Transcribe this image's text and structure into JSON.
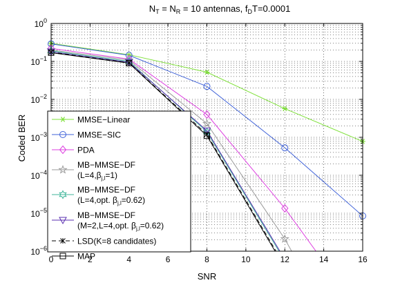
{
  "chart_data": {
    "type": "line",
    "title_parts": {
      "n": "N",
      "t_sub": "T",
      "eq": " = N",
      "r_sub": "R",
      "mid": " = 10 antennas, f",
      "d_sub": "D",
      "tail": "T=0.0001"
    },
    "xlabel": "SNR",
    "ylabel": "Coded BER",
    "xlim": [
      0,
      16
    ],
    "ylim_exponent": [
      -6,
      0
    ],
    "yscale": "log",
    "grid": true,
    "x_ticks": [
      0,
      2,
      4,
      6,
      8,
      10,
      12,
      14,
      16
    ],
    "y_tick_base": "10",
    "y_tick_exponents": [
      "0",
      "−1",
      "−2",
      "−3",
      "−4",
      "−5",
      "−6"
    ],
    "legend_position": "lower-left",
    "series": [
      {
        "legend": [
          [
            "MMSE−Linear"
          ]
        ],
        "color": "#7fe03a",
        "marker": "star6",
        "points": [
          [
            0,
            0.3
          ],
          [
            4,
            0.15
          ],
          [
            8,
            0.052
          ],
          [
            12,
            0.0057
          ],
          [
            16,
            0.00078
          ]
        ]
      },
      {
        "legend": [
          [
            "MMSE−SIC"
          ]
        ],
        "color": "#3f62d8",
        "marker": "circle",
        "points": [
          [
            0,
            0.29
          ],
          [
            4,
            0.145
          ],
          [
            8,
            0.022
          ],
          [
            12,
            0.00053
          ],
          [
            16,
            8.5e-06
          ]
        ]
      },
      {
        "legend": [
          [
            "PDA"
          ]
        ],
        "color": "#dd3fe0",
        "marker": "diamond",
        "points": [
          [
            0,
            0.22
          ],
          [
            4,
            0.115
          ],
          [
            8,
            0.004
          ],
          [
            12,
            1.35e-05
          ],
          [
            13.6,
            1e-06
          ]
        ]
      },
      {
        "legend": [
          [
            "MB−MMSE−DF"
          ],
          [
            "(L=4,β",
            "j,l",
            "=1)"
          ]
        ],
        "color": "#9a9a9a",
        "marker": "pentagram",
        "points": [
          [
            0,
            0.2
          ],
          [
            4,
            0.108
          ],
          [
            8,
            0.0023
          ],
          [
            12,
            2.1e-06
          ],
          [
            12.35,
            1e-06
          ]
        ]
      },
      {
        "legend": [
          [
            "MB−MMSE−DF"
          ],
          [
            "(L=4,opt. β",
            "j,l",
            "=0.62)"
          ]
        ],
        "color": "#3fb59a",
        "marker": "hexagram",
        "points": [
          [
            0,
            0.19
          ],
          [
            4,
            0.1
          ],
          [
            8,
            0.0014
          ],
          [
            11.7,
            1e-06
          ]
        ]
      },
      {
        "legend": [
          [
            "MB−MMSE−DF"
          ],
          [
            "(M=2,L=4,opt. β",
            "j,l",
            "=0.62)"
          ]
        ],
        "color": "#5a2fb0",
        "marker": "triangle-down",
        "points": [
          [
            0,
            0.18
          ],
          [
            4,
            0.095
          ],
          [
            8,
            0.0015
          ],
          [
            11.75,
            1e-06
          ]
        ]
      },
      {
        "legend": [
          [
            "LSD(K=8 candidates)"
          ]
        ],
        "color": "#000000",
        "marker": "x",
        "dash": "6,4",
        "points": [
          [
            0,
            0.175
          ],
          [
            4,
            0.092
          ],
          [
            8,
            0.0012
          ],
          [
            11.55,
            1e-06
          ]
        ]
      },
      {
        "legend": [
          [
            "MAP"
          ]
        ],
        "color": "#000000",
        "marker": "square",
        "points": [
          [
            0,
            0.17
          ],
          [
            4,
            0.09
          ],
          [
            8,
            0.0011
          ],
          [
            11.5,
            1e-06
          ]
        ]
      }
    ]
  }
}
